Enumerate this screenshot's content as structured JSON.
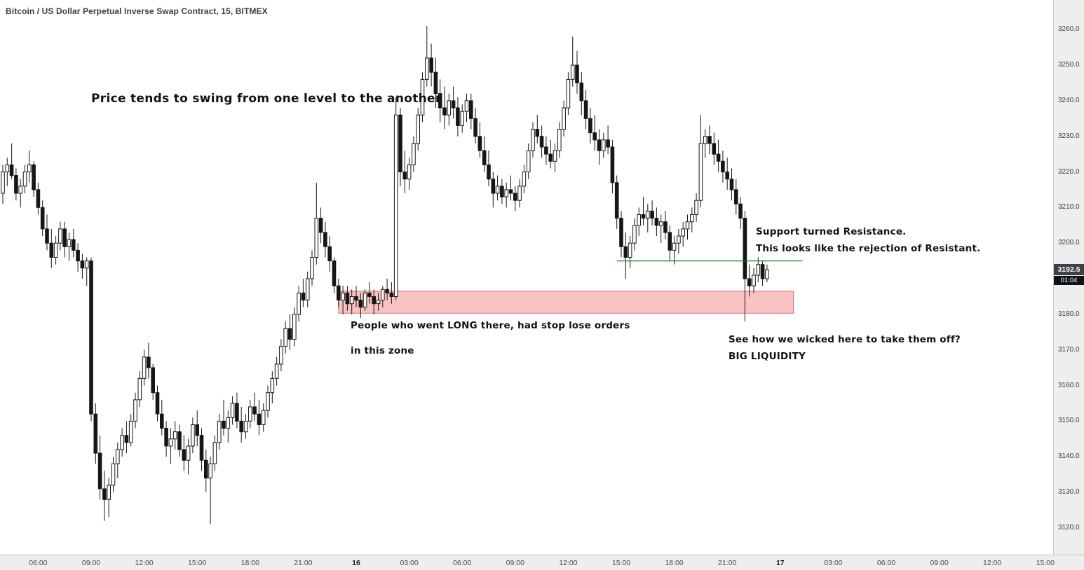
{
  "header": {
    "symbol_title": "Bitcoin / US Dollar Perpetual Inverse Swap Contract, 15, BITMEX"
  },
  "annotations": {
    "swing": "Price tends to swing from one level to the another",
    "support_resistance_1": "Support turned Resistance.",
    "support_resistance_2": "This looks like the rejection of Resistant.",
    "stop_loss_1": "People who went LONG there, had stop lose orders",
    "stop_loss_2": "in this zone",
    "wick_1": "See how we wicked here to take them off?",
    "wick_2": "BIG LIQUIDITY"
  },
  "price_scale": {
    "labels": [
      "3260.0",
      "3250.0",
      "3240.0",
      "3230.0",
      "3220.0",
      "3210.0",
      "3200.0",
      "3180.0",
      "3170.0",
      "3160.0",
      "3150.0",
      "3140.0",
      "3130.0",
      "3120.0"
    ],
    "last_price": "3192.5",
    "last_price_value": 3192.5,
    "countdown": "01:04"
  },
  "time_scale": {
    "labels": [
      {
        "text": "06:00",
        "idx": 8
      },
      {
        "text": "09:00",
        "idx": 20
      },
      {
        "text": "12:00",
        "idx": 32
      },
      {
        "text": "15:00",
        "idx": 44
      },
      {
        "text": "18:00",
        "idx": 56
      },
      {
        "text": "21:00",
        "idx": 68
      },
      {
        "text": "16",
        "idx": 80,
        "date": true
      },
      {
        "text": "03:00",
        "idx": 92
      },
      {
        "text": "06:00",
        "idx": 104
      },
      {
        "text": "09:00",
        "idx": 116
      },
      {
        "text": "12:00",
        "idx": 128
      },
      {
        "text": "15:00",
        "idx": 140
      },
      {
        "text": "18:00",
        "idx": 152
      },
      {
        "text": "21:00",
        "idx": 164
      },
      {
        "text": "17",
        "idx": 176,
        "date": true
      },
      {
        "text": "03:00",
        "idx": 188
      },
      {
        "text": "06:00",
        "idx": 200
      },
      {
        "text": "09:00",
        "idx": 212
      },
      {
        "text": "12:00",
        "idx": 224
      },
      {
        "text": "15:00",
        "idx": 236
      }
    ]
  },
  "chart_data": {
    "type": "candlestick",
    "title": "Bitcoin / US Dollar Perpetual Inverse Swap Contract, 15, BITMEX",
    "interval_minutes": 15,
    "exchange": "BITMEX",
    "grid": false,
    "ylim": [
      3112.5,
      3268.3
    ],
    "colors": {
      "up": "#ffffff",
      "down": "#161616",
      "stroke": "#161616"
    },
    "zone": {
      "label": "stop-loss liquidity zone",
      "price_top": 3186.5,
      "price_bottom": 3180.3,
      "idx_start": 76,
      "idx_end": 179,
      "fill": "#ef5350",
      "fill_opacity": 0.35,
      "stroke": "#c96a6a"
    },
    "level_line": {
      "label": "support-turned-resistance",
      "price": 3195,
      "idx_start": 139,
      "idx_end": 181,
      "color": "#1b7a1b"
    },
    "candles": [
      [
        3214,
        3222,
        3211,
        3220
      ],
      [
        3220,
        3224,
        3216,
        3222
      ],
      [
        3222,
        3228,
        3218,
        3219
      ],
      [
        3219,
        3221,
        3212,
        3214
      ],
      [
        3214,
        3218,
        3210,
        3216
      ],
      [
        3216,
        3222,
        3214,
        3220
      ],
      [
        3220,
        3226,
        3217,
        3222
      ],
      [
        3222,
        3223,
        3213,
        3215
      ],
      [
        3215,
        3217,
        3208,
        3210
      ],
      [
        3210,
        3212,
        3202,
        3204
      ],
      [
        3204,
        3208,
        3198,
        3200
      ],
      [
        3200,
        3204,
        3193,
        3196
      ],
      [
        3196,
        3202,
        3194,
        3200
      ],
      [
        3200,
        3206,
        3198,
        3204
      ],
      [
        3204,
        3206,
        3196,
        3199
      ],
      [
        3199,
        3203,
        3195,
        3201
      ],
      [
        3201,
        3204,
        3196,
        3198
      ],
      [
        3198,
        3200,
        3192,
        3195
      ],
      [
        3195,
        3197,
        3190,
        3193
      ],
      [
        3193,
        3196,
        3188,
        3195
      ],
      [
        3195,
        3196,
        3150,
        3152
      ],
      [
        3152,
        3155,
        3138,
        3141
      ],
      [
        3141,
        3146,
        3128,
        3131
      ],
      [
        3131,
        3136,
        3122,
        3128
      ],
      [
        3128,
        3134,
        3123,
        3132
      ],
      [
        3132,
        3140,
        3130,
        3138
      ],
      [
        3138,
        3144,
        3134,
        3142
      ],
      [
        3142,
        3148,
        3140,
        3146
      ],
      [
        3146,
        3150,
        3141,
        3144
      ],
      [
        3144,
        3152,
        3143,
        3150
      ],
      [
        3150,
        3158,
        3148,
        3156
      ],
      [
        3156,
        3164,
        3154,
        3162
      ],
      [
        3162,
        3170,
        3160,
        3168
      ],
      [
        3168,
        3172,
        3162,
        3165
      ],
      [
        3165,
        3166,
        3156,
        3158
      ],
      [
        3158,
        3160,
        3150,
        3152
      ],
      [
        3152,
        3156,
        3146,
        3148
      ],
      [
        3148,
        3150,
        3140,
        3143
      ],
      [
        3143,
        3148,
        3138,
        3145
      ],
      [
        3145,
        3150,
        3142,
        3147
      ],
      [
        3147,
        3149,
        3140,
        3142
      ],
      [
        3142,
        3146,
        3136,
        3139
      ],
      [
        3139,
        3145,
        3135,
        3143
      ],
      [
        3143,
        3151,
        3141,
        3149
      ],
      [
        3149,
        3153,
        3143,
        3146
      ],
      [
        3146,
        3148,
        3136,
        3139
      ],
      [
        3139,
        3142,
        3130,
        3134
      ],
      [
        3134,
        3140,
        3121,
        3138
      ],
      [
        3138,
        3146,
        3136,
        3144
      ],
      [
        3144,
        3152,
        3142,
        3150
      ],
      [
        3150,
        3156,
        3146,
        3148
      ],
      [
        3148,
        3153,
        3144,
        3151
      ],
      [
        3151,
        3157,
        3149,
        3155
      ],
      [
        3155,
        3158,
        3148,
        3150
      ],
      [
        3150,
        3154,
        3144,
        3147
      ],
      [
        3147,
        3152,
        3145,
        3150
      ],
      [
        3150,
        3156,
        3148,
        3154
      ],
      [
        3154,
        3158,
        3150,
        3152
      ],
      [
        3152,
        3156,
        3146,
        3149
      ],
      [
        3149,
        3155,
        3147,
        3153
      ],
      [
        3153,
        3160,
        3151,
        3158
      ],
      [
        3158,
        3164,
        3155,
        3162
      ],
      [
        3162,
        3168,
        3160,
        3166
      ],
      [
        3166,
        3173,
        3164,
        3171
      ],
      [
        3171,
        3178,
        3169,
        3176
      ],
      [
        3176,
        3180,
        3170,
        3173
      ],
      [
        3173,
        3182,
        3171,
        3180
      ],
      [
        3180,
        3188,
        3178,
        3186
      ],
      [
        3186,
        3190,
        3182,
        3184
      ],
      [
        3184,
        3192,
        3182,
        3190
      ],
      [
        3190,
        3198,
        3188,
        3196
      ],
      [
        3196,
        3217,
        3194,
        3207
      ],
      [
        3207,
        3210,
        3200,
        3203
      ],
      [
        3203,
        3206,
        3196,
        3199
      ],
      [
        3199,
        3202,
        3192,
        3195
      ],
      [
        3195,
        3196,
        3186,
        3188
      ],
      [
        3188,
        3190,
        3182,
        3184
      ],
      [
        3184,
        3188,
        3180,
        3186
      ],
      [
        3186,
        3188,
        3181,
        3183
      ],
      [
        3183,
        3187,
        3180,
        3185
      ],
      [
        3185,
        3188,
        3182,
        3184
      ],
      [
        3184,
        3186,
        3179,
        3182
      ],
      [
        3182,
        3187,
        3181,
        3186
      ],
      [
        3186,
        3189,
        3183,
        3185
      ],
      [
        3185,
        3187,
        3180,
        3183
      ],
      [
        3183,
        3186,
        3181,
        3184
      ],
      [
        3184,
        3188,
        3182,
        3187
      ],
      [
        3187,
        3190,
        3184,
        3186
      ],
      [
        3186,
        3189,
        3183,
        3185
      ],
      [
        3185,
        3241,
        3184,
        3236
      ],
      [
        3236,
        3238,
        3216,
        3220
      ],
      [
        3220,
        3226,
        3214,
        3218
      ],
      [
        3218,
        3224,
        3215,
        3222
      ],
      [
        3222,
        3230,
        3220,
        3228
      ],
      [
        3228,
        3238,
        3226,
        3236
      ],
      [
        3236,
        3248,
        3234,
        3246
      ],
      [
        3246,
        3261,
        3244,
        3252
      ],
      [
        3252,
        3256,
        3244,
        3248
      ],
      [
        3248,
        3252,
        3238,
        3242
      ],
      [
        3242,
        3246,
        3234,
        3238
      ],
      [
        3238,
        3244,
        3232,
        3236
      ],
      [
        3236,
        3242,
        3233,
        3240
      ],
      [
        3240,
        3244,
        3235,
        3238
      ],
      [
        3238,
        3241,
        3230,
        3233
      ],
      [
        3233,
        3239,
        3231,
        3237
      ],
      [
        3237,
        3242,
        3234,
        3240
      ],
      [
        3240,
        3242,
        3232,
        3235
      ],
      [
        3235,
        3238,
        3228,
        3230
      ],
      [
        3230,
        3234,
        3224,
        3226
      ],
      [
        3226,
        3230,
        3220,
        3222
      ],
      [
        3222,
        3226,
        3216,
        3218
      ],
      [
        3218,
        3220,
        3210,
        3214
      ],
      [
        3214,
        3219,
        3212,
        3216
      ],
      [
        3216,
        3218,
        3211,
        3213
      ],
      [
        3213,
        3217,
        3210,
        3215
      ],
      [
        3215,
        3219,
        3212,
        3214
      ],
      [
        3214,
        3216,
        3209,
        3212
      ],
      [
        3212,
        3218,
        3210,
        3216
      ],
      [
        3216,
        3222,
        3214,
        3220
      ],
      [
        3220,
        3228,
        3218,
        3226
      ],
      [
        3226,
        3234,
        3224,
        3232
      ],
      [
        3232,
        3236,
        3228,
        3230
      ],
      [
        3230,
        3233,
        3224,
        3227
      ],
      [
        3227,
        3230,
        3222,
        3225
      ],
      [
        3225,
        3229,
        3221,
        3223
      ],
      [
        3223,
        3228,
        3220,
        3226
      ],
      [
        3226,
        3234,
        3224,
        3232
      ],
      [
        3232,
        3240,
        3230,
        3238
      ],
      [
        3238,
        3248,
        3236,
        3246
      ],
      [
        3246,
        3258,
        3244,
        3250
      ],
      [
        3250,
        3254,
        3242,
        3245
      ],
      [
        3245,
        3248,
        3236,
        3240
      ],
      [
        3240,
        3243,
        3232,
        3235
      ],
      [
        3235,
        3238,
        3228,
        3231
      ],
      [
        3231,
        3236,
        3226,
        3229
      ],
      [
        3229,
        3232,
        3222,
        3226
      ],
      [
        3226,
        3231,
        3224,
        3229
      ],
      [
        3229,
        3233,
        3225,
        3227
      ],
      [
        3227,
        3229,
        3214,
        3217
      ],
      [
        3217,
        3219,
        3204,
        3207
      ],
      [
        3207,
        3209,
        3196,
        3199
      ],
      [
        3199,
        3203,
        3190,
        3196
      ],
      [
        3196,
        3202,
        3193,
        3200
      ],
      [
        3200,
        3207,
        3198,
        3205
      ],
      [
        3205,
        3210,
        3202,
        3208
      ],
      [
        3208,
        3213,
        3205,
        3207
      ],
      [
        3207,
        3211,
        3203,
        3209
      ],
      [
        3209,
        3212,
        3205,
        3207
      ],
      [
        3207,
        3210,
        3202,
        3205
      ],
      [
        3205,
        3208,
        3200,
        3206
      ],
      [
        3206,
        3209,
        3201,
        3203
      ],
      [
        3203,
        3205,
        3195,
        3198
      ],
      [
        3198,
        3202,
        3194,
        3200
      ],
      [
        3200,
        3204,
        3197,
        3202
      ],
      [
        3202,
        3206,
        3199,
        3204
      ],
      [
        3204,
        3208,
        3201,
        3206
      ],
      [
        3206,
        3210,
        3203,
        3208
      ],
      [
        3208,
        3214,
        3206,
        3212
      ],
      [
        3212,
        3236,
        3210,
        3228
      ],
      [
        3228,
        3232,
        3224,
        3230
      ],
      [
        3230,
        3233,
        3225,
        3228
      ],
      [
        3228,
        3231,
        3222,
        3225
      ],
      [
        3225,
        3229,
        3220,
        3223
      ],
      [
        3223,
        3226,
        3217,
        3220
      ],
      [
        3220,
        3224,
        3215,
        3218
      ],
      [
        3218,
        3221,
        3212,
        3215
      ],
      [
        3215,
        3218,
        3208,
        3211
      ],
      [
        3211,
        3213,
        3204,
        3207
      ],
      [
        3207,
        3209,
        3178,
        3190
      ],
      [
        3190,
        3194,
        3185,
        3188
      ],
      [
        3188,
        3193,
        3186,
        3191
      ],
      [
        3191,
        3196,
        3189,
        3194
      ],
      [
        3194,
        3195,
        3188,
        3190
      ],
      [
        3190,
        3194,
        3189,
        3192.5
      ]
    ]
  }
}
